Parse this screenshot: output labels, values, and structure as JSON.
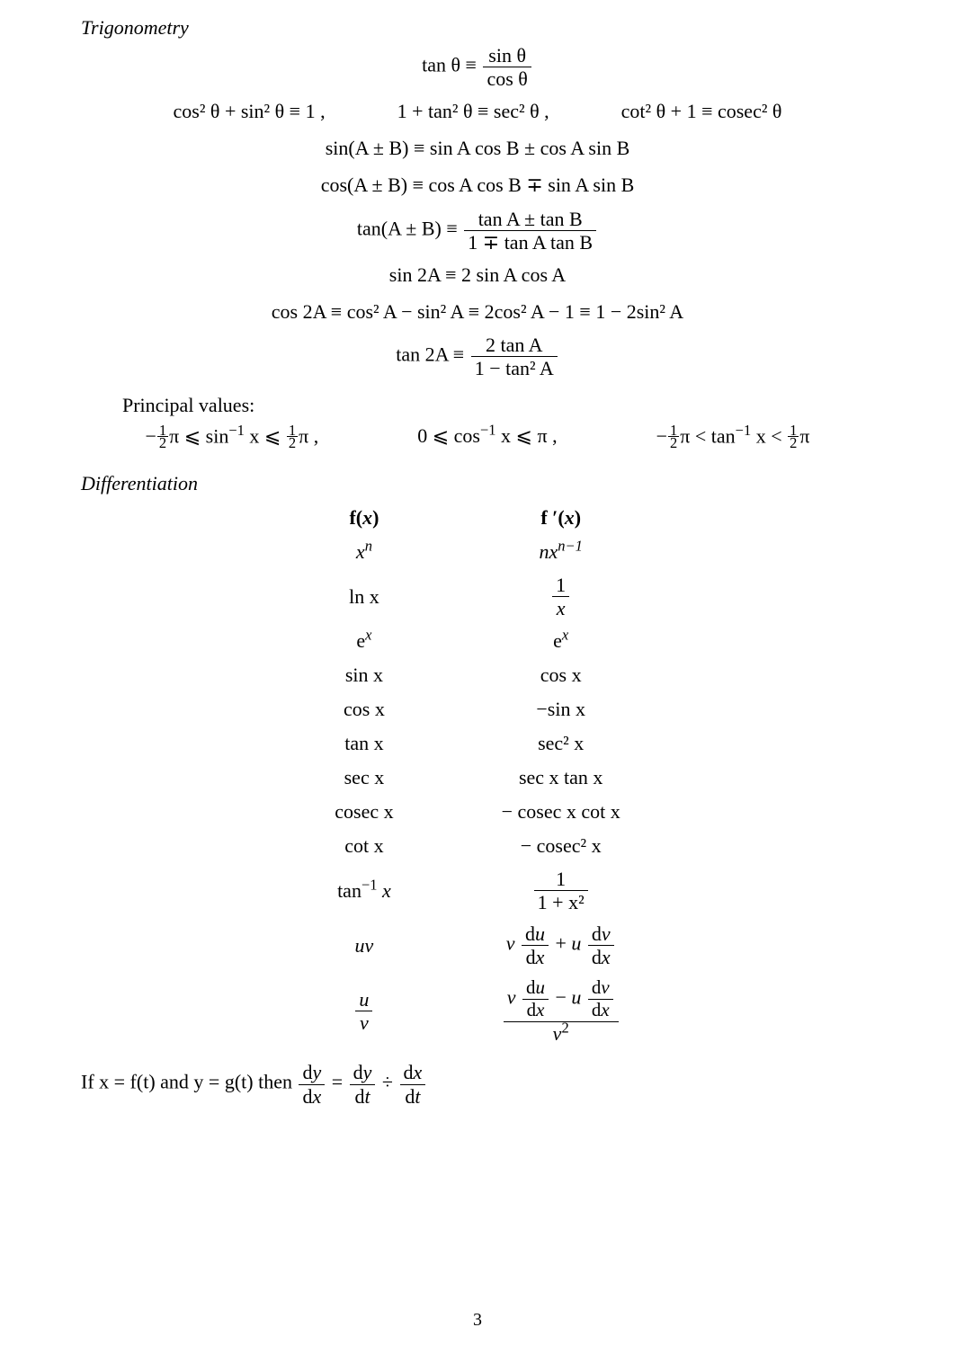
{
  "page_number": "3",
  "sections": {
    "trig_title": "Trigonometry",
    "diff_title": "Differentiation",
    "principal_values_label": "Principal values:"
  },
  "trig_identities": {
    "tan_def_lhs": "tan θ ≡",
    "tan_def_num": "sin θ",
    "tan_def_den": "cos θ",
    "pythag_1": "cos² θ + sin² θ ≡ 1 ,",
    "pythag_2": "1 + tan² θ ≡ sec² θ ,",
    "pythag_3": "cot² θ + 1 ≡ cosec² θ",
    "sin_sum": "sin(A ± B) ≡ sin A cos B ± cos A sin B",
    "cos_sum": "cos(A ± B) ≡ cos A cos B ∓ sin A sin B",
    "tan_sum_lhs": "tan(A ± B) ≡",
    "tan_sum_num": "tan A ± tan B",
    "tan_sum_den": "1 ∓ tan A tan B",
    "sin2A": "sin 2A ≡ 2 sin A cos A",
    "cos2A": "cos 2A ≡ cos² A − sin² A ≡ 2cos² A − 1 ≡ 1 − 2sin² A",
    "tan2A_lhs": "tan 2A ≡",
    "tan2A_num": "2 tan A",
    "tan2A_den": "1 − tan² A"
  },
  "principal_values": {
    "arcsin_pre": "−",
    "arcsin_mid1": "π ⩽ sin",
    "arcsin_sup": "−1",
    "arcsin_mid2": " x ⩽ ",
    "arcsin_post": "π ,",
    "arccos": "0 ⩽ cos",
    "arccos_sup": "−1",
    "arccos_post": " x ⩽ π ,",
    "arctan_pre": "−",
    "arctan_mid1": "π < tan",
    "arctan_sup": "−1",
    "arctan_mid2": " x < ",
    "arctan_post": "π"
  },
  "diff_table": {
    "head_fx": "f(x)",
    "head_fpx": "f ′(x)",
    "rows": {
      "r1_fx": "xⁿ",
      "r1_fpx": "nxⁿ⁻¹",
      "r2_fx": "ln x",
      "r2_num": "1",
      "r2_den": "x",
      "r3_fx": "eˣ",
      "r3_fpx": "eˣ",
      "r4_fx": "sin x",
      "r4_fpx": "cos x",
      "r5_fx": "cos x",
      "r5_fpx": "−sin x",
      "r6_fx": "tan x",
      "r6_fpx": "sec² x",
      "r7_fx": "sec x",
      "r7_fpx": "sec x tan x",
      "r8_fx": "cosec x",
      "r8_fpx": "− cosec x cot x",
      "r9_fx": "cot x",
      "r9_fpx": "− cosec² x",
      "r10_fx_pre": "tan",
      "r10_fx_sup": "−1",
      "r10_fx_post": " x",
      "r10_num": "1",
      "r10_den": "1 + x²",
      "r11_fx": "uv",
      "r12_num_u": "u",
      "r12_num_v": "v"
    }
  },
  "chain_rule": {
    "pre": "If  x = f(t)  and  y = g(t)  then ",
    "dy": "dy",
    "dx": "dx",
    "dt": "dt"
  }
}
